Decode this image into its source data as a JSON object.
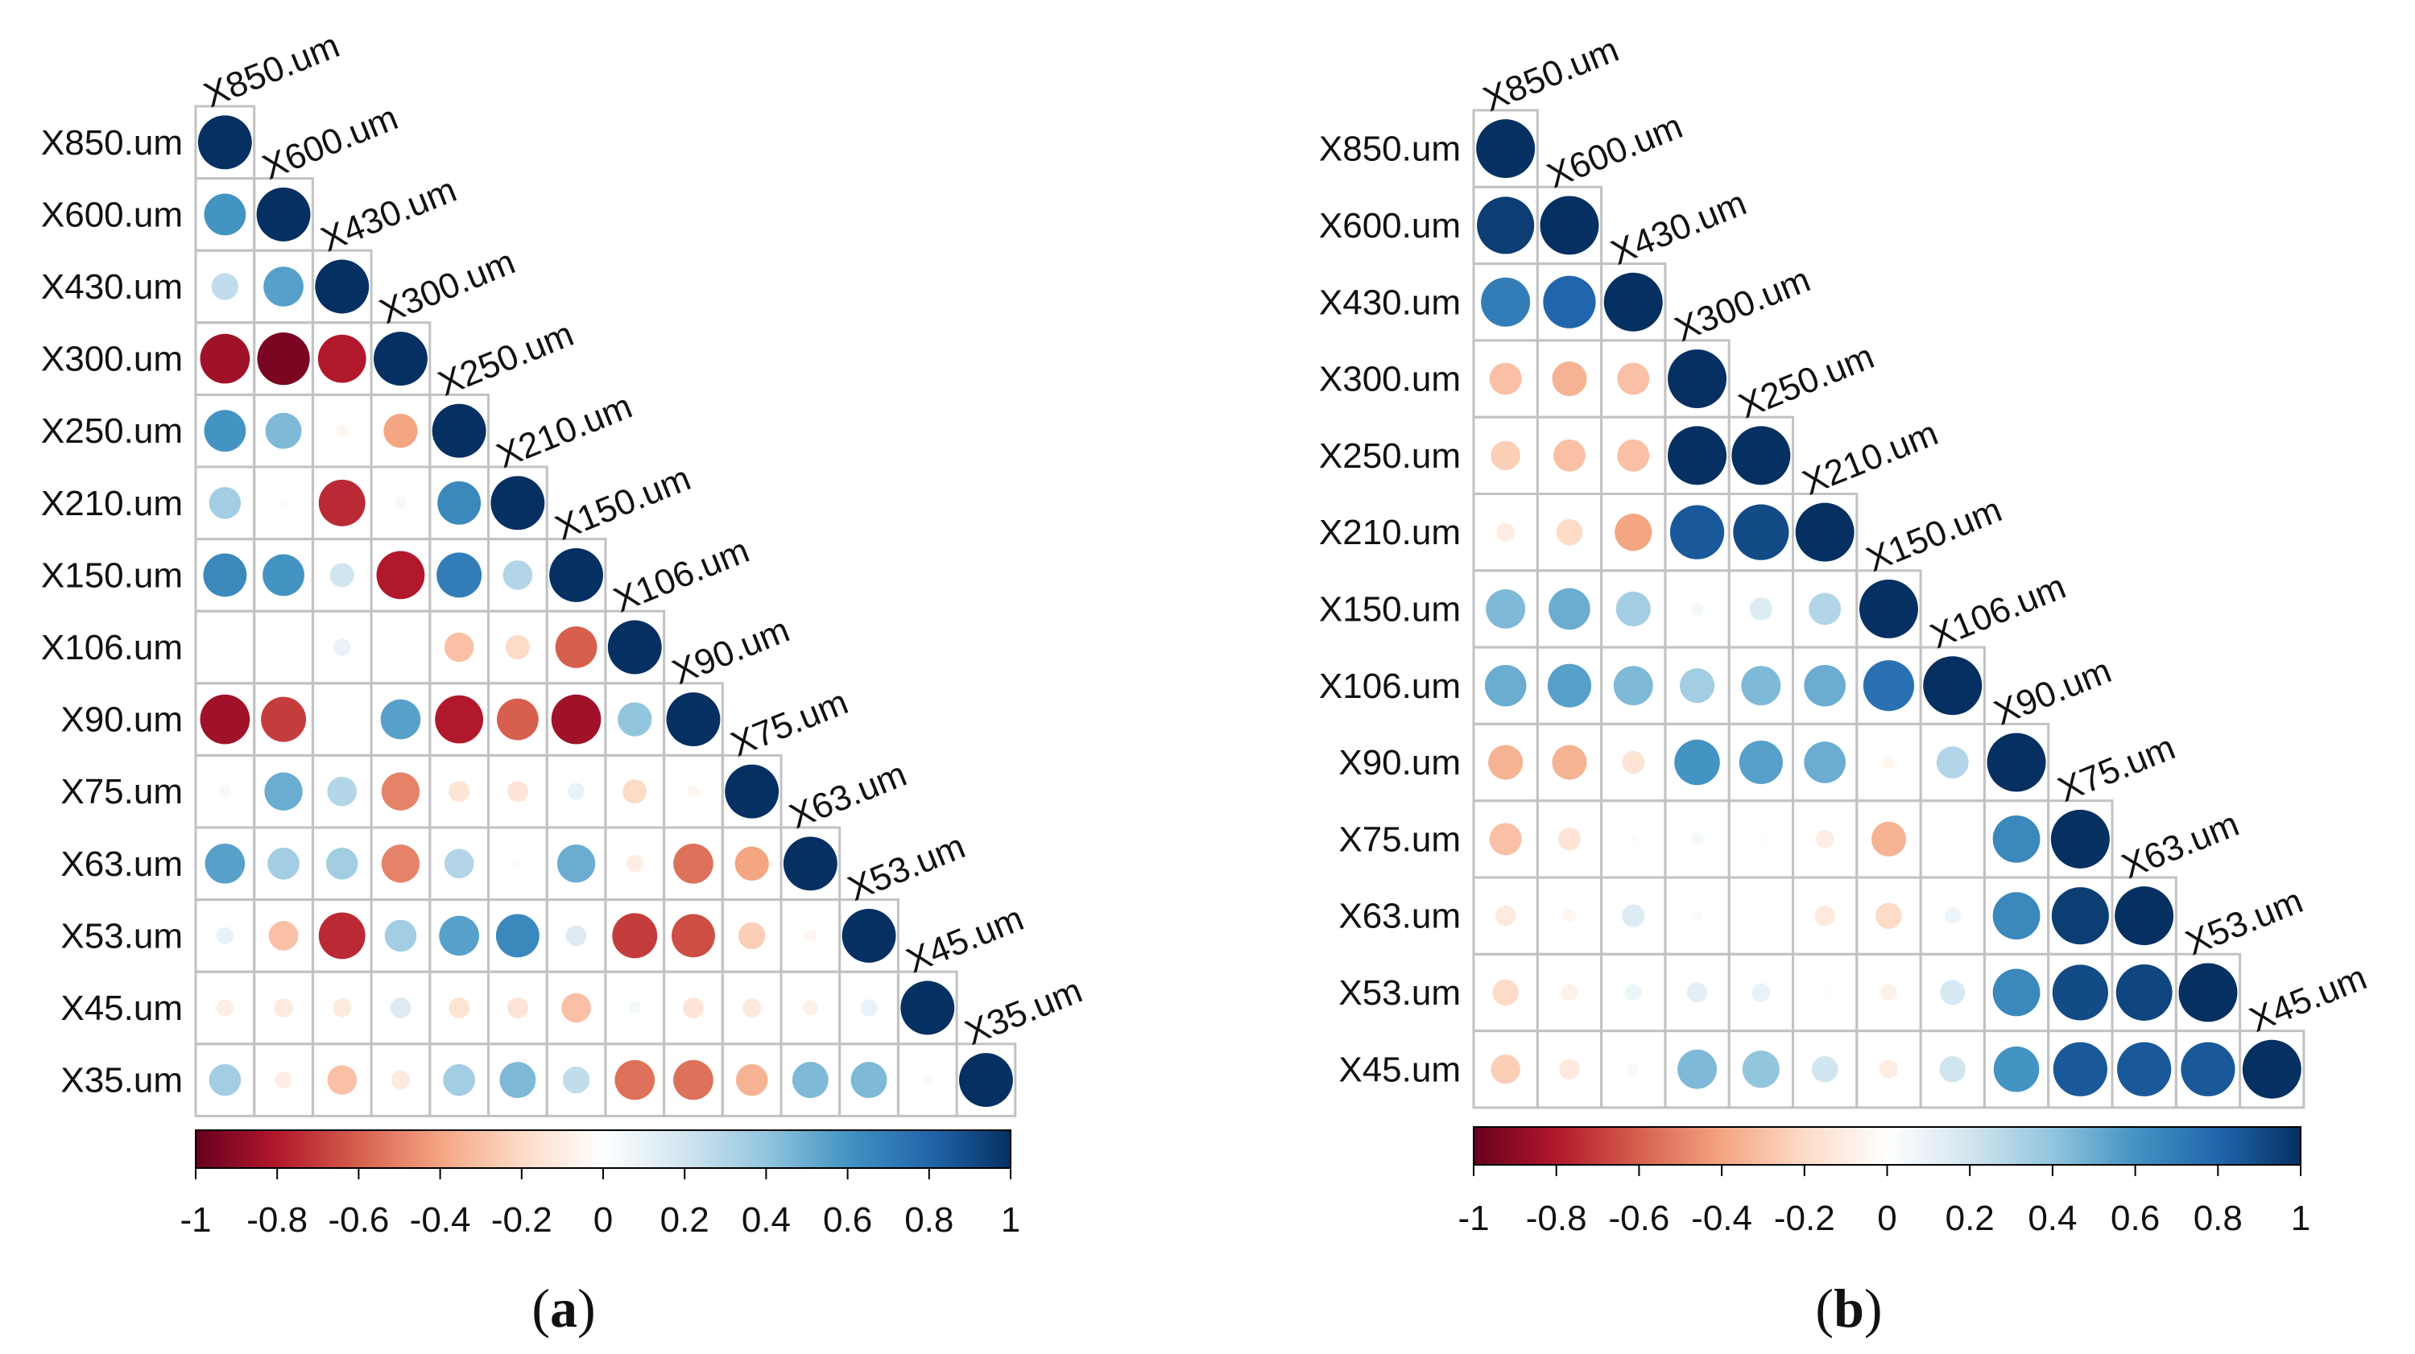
{
  "colors": {
    "neg": "#67001F",
    "mid": "#FFFFFF",
    "pos": "#053061",
    "grid": "#C2C2C2",
    "stops": [
      "#67001F",
      "#B2182B",
      "#D6604D",
      "#F4A582",
      "#FDDBC7",
      "#FFFFFF",
      "#D1E5F0",
      "#92C5DE",
      "#4393C3",
      "#2166AC",
      "#053061"
    ]
  },
  "chart_data": [
    {
      "type": "heatmap",
      "style": "correlation-circles-lower-triangle",
      "panel_label": {
        "open": "(",
        "letter": "a",
        "close": ")"
      },
      "variables": [
        "X850.um",
        "X600.um",
        "X430.um",
        "X300.um",
        "X250.um",
        "X210.um",
        "X150.um",
        "X106.um",
        "X90.um",
        "X75.um",
        "X63.um",
        "X53.um",
        "X45.um",
        "X35.um"
      ],
      "matrix": [
        [
          1
        ],
        [
          0.6,
          1
        ],
        [
          0.25,
          0.55,
          1
        ],
        [
          -0.85,
          -0.95,
          -0.8,
          1
        ],
        [
          0.6,
          0.45,
          -0.05,
          -0.4,
          1
        ],
        [
          0.35,
          0.02,
          -0.75,
          0.05,
          0.65,
          1
        ],
        [
          0.65,
          0.6,
          0.2,
          -0.8,
          0.7,
          0.3,
          1
        ],
        [
          0.0,
          0.0,
          0.1,
          0.0,
          -0.3,
          -0.2,
          -0.6,
          1
        ],
        [
          -0.85,
          -0.7,
          0.0,
          0.55,
          -0.8,
          -0.6,
          -0.85,
          0.4,
          1
        ],
        [
          0.05,
          0.5,
          0.3,
          -0.5,
          -0.15,
          -0.15,
          0.1,
          -0.2,
          -0.05,
          1
        ],
        [
          0.55,
          0.35,
          0.35,
          -0.5,
          0.3,
          0.02,
          0.5,
          -0.1,
          -0.55,
          -0.4,
          1
        ],
        [
          0.1,
          -0.3,
          -0.75,
          0.35,
          0.55,
          0.65,
          0.15,
          -0.7,
          -0.65,
          -0.25,
          -0.05,
          1
        ],
        [
          -0.1,
          -0.12,
          -0.12,
          0.15,
          -0.15,
          -0.15,
          -0.3,
          0.05,
          -0.15,
          -0.12,
          -0.08,
          0.1,
          1
        ],
        [
          0.35,
          -0.1,
          -0.3,
          -0.12,
          0.35,
          0.45,
          0.25,
          -0.55,
          -0.55,
          -0.35,
          0.45,
          0.45,
          0.03,
          1
        ]
      ],
      "colorbar": {
        "min": -1,
        "max": 1,
        "ticks": [
          "-1",
          "-0.8",
          "-0.6",
          "-0.4",
          "-0.2",
          "0",
          "0.2",
          "0.4",
          "0.6",
          "0.8",
          "1"
        ]
      }
    },
    {
      "type": "heatmap",
      "style": "correlation-circles-lower-triangle",
      "panel_label": {
        "open": "(",
        "letter": "b",
        "close": ")"
      },
      "variables": [
        "X850.um",
        "X600.um",
        "X430.um",
        "X300.um",
        "X250.um",
        "X210.um",
        "X150.um",
        "X106.um",
        "X90.um",
        "X75.um",
        "X63.um",
        "X53.um",
        "X45.um"
      ],
      "matrix": [
        [
          1
        ],
        [
          0.95,
          1
        ],
        [
          0.7,
          0.8,
          1
        ],
        [
          -0.3,
          -0.35,
          -0.3,
          1
        ],
        [
          -0.25,
          -0.3,
          -0.3,
          1.0,
          1
        ],
        [
          -0.1,
          -0.2,
          -0.4,
          0.85,
          0.9,
          1
        ],
        [
          0.45,
          0.5,
          0.35,
          0.05,
          0.15,
          0.3,
          1
        ],
        [
          0.5,
          0.55,
          0.45,
          0.35,
          0.45,
          0.5,
          0.75,
          1
        ],
        [
          -0.35,
          -0.35,
          -0.15,
          0.6,
          0.55,
          0.5,
          -0.05,
          0.3,
          1
        ],
        [
          -0.3,
          -0.15,
          -0.02,
          0.05,
          0.02,
          -0.1,
          -0.35,
          0.0,
          0.65,
          1
        ],
        [
          -0.12,
          -0.05,
          0.15,
          0.03,
          0.0,
          -0.12,
          -0.2,
          0.08,
          0.65,
          0.95,
          1
        ],
        [
          -0.2,
          -0.08,
          0.08,
          0.12,
          0.1,
          0.02,
          -0.08,
          0.18,
          0.65,
          0.9,
          0.92,
          1
        ],
        [
          -0.25,
          -0.12,
          0.04,
          0.45,
          0.4,
          0.2,
          -0.1,
          0.2,
          0.6,
          0.85,
          0.85,
          0.85,
          1
        ]
      ],
      "colorbar": {
        "min": -1,
        "max": 1,
        "ticks": [
          "-1",
          "-0.8",
          "-0.6",
          "-0.4",
          "-0.2",
          "0",
          "0.2",
          "0.4",
          "0.6",
          "0.8",
          "1"
        ]
      }
    }
  ]
}
